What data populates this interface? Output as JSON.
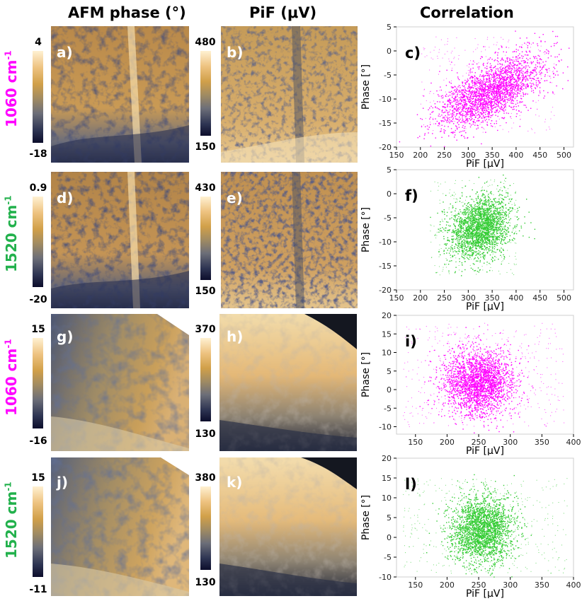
{
  "headers": {
    "afm": "AFM phase (°)",
    "pif": "PiF (μV)",
    "corr": "Correlation"
  },
  "row_labels": [
    {
      "num": "1060 cm",
      "sup": "-1",
      "color": "#ff00ff"
    },
    {
      "num": "1520 cm",
      "sup": "-1",
      "color": "#22b14c"
    },
    {
      "num": "1060 cm",
      "sup": "-1",
      "color": "#ff00ff"
    },
    {
      "num": "1520 cm",
      "sup": "-1",
      "color": "#22b14c"
    }
  ],
  "colorbars": [
    {
      "afm_max": "4",
      "afm_min": "-18",
      "pif_max": "480",
      "pif_min": "150"
    },
    {
      "afm_max": "0.9",
      "afm_min": "-20",
      "pif_max": "430",
      "pif_min": "150"
    },
    {
      "afm_max": "15",
      "afm_min": "-16",
      "pif_max": "370",
      "pif_min": "130"
    },
    {
      "afm_max": "15",
      "afm_min": "-11",
      "pif_max": "380",
      "pif_min": "130"
    }
  ],
  "panel_letters": [
    "a)",
    "b)",
    "c)",
    "d)",
    "e)",
    "f)",
    "g)",
    "h)",
    "i)",
    "j)",
    "k)",
    "l)"
  ],
  "chart_data": [
    {
      "type": "scatter",
      "letter": "c)",
      "xlabel": "PiF [μV]",
      "ylabel": "Phase [°]",
      "xlim": [
        150,
        520
      ],
      "ylim": [
        -20,
        5
      ],
      "xticks": [
        150,
        200,
        250,
        300,
        350,
        400,
        450,
        500
      ],
      "yticks": [
        -20,
        -15,
        -10,
        -5,
        0,
        5
      ],
      "color": "#ff00ff",
      "cluster": {
        "cx": 345,
        "cy": -8.5,
        "sx": 55,
        "sy": 3.0,
        "slope": 0.045,
        "n": 2400
      },
      "sparse": {
        "xrange": [
          200,
          480
        ],
        "yrange": [
          -17,
          3
        ],
        "n": 260
      }
    },
    {
      "type": "scatter",
      "letter": "f)",
      "xlabel": "PiF [μV]",
      "ylabel": "Phase [°]",
      "xlim": [
        150,
        520
      ],
      "ylim": [
        -20,
        5
      ],
      "xticks": [
        150,
        200,
        250,
        300,
        350,
        400,
        450,
        500
      ],
      "yticks": [
        -20,
        -15,
        -10,
        -5,
        0,
        5
      ],
      "color": "#33cc33",
      "cluster": {
        "cx": 325,
        "cy": -7,
        "sx": 32,
        "sy": 3.2,
        "slope": 0.03,
        "n": 2200
      },
      "sparse": {
        "xrange": [
          220,
          400
        ],
        "yrange": [
          -17,
          3
        ],
        "n": 260
      }
    },
    {
      "type": "scatter",
      "letter": "i)",
      "xlabel": "PiF [μV]",
      "ylabel": "Phase [°]",
      "xlim": [
        120,
        400
      ],
      "ylim": [
        -12,
        20
      ],
      "xticks": [
        150,
        200,
        250,
        300,
        350,
        400
      ],
      "yticks": [
        -10,
        -5,
        0,
        5,
        10,
        15,
        20
      ],
      "color": "#ff00ff",
      "cluster": {
        "cx": 250,
        "cy": 2,
        "sx": 28,
        "sy": 4.5,
        "slope": 0.0,
        "n": 2300
      },
      "sparse": {
        "xrange": [
          130,
          385
        ],
        "yrange": [
          -10,
          18
        ],
        "n": 420
      }
    },
    {
      "type": "scatter",
      "letter": "l)",
      "xlabel": "PiF [μV]",
      "ylabel": "Phase [°]",
      "xlim": [
        120,
        400
      ],
      "ylim": [
        -10,
        20
      ],
      "xticks": [
        150,
        200,
        250,
        300,
        350,
        400
      ],
      "yticks": [
        -10,
        -5,
        0,
        5,
        10,
        15,
        20
      ],
      "color": "#33cc33",
      "cluster": {
        "cx": 255,
        "cy": 2,
        "sx": 25,
        "sy": 4.2,
        "slope": 0.0,
        "n": 2300
      },
      "sparse": {
        "xrange": [
          130,
          390
        ],
        "yrange": [
          -9,
          15
        ],
        "n": 420
      }
    }
  ]
}
